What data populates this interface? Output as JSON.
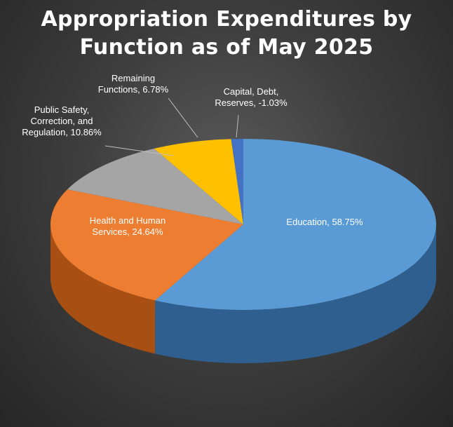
{
  "chart_data": {
    "type": "pie",
    "style": "3d",
    "title_lines": [
      "Appropriation Expenditures by",
      "Function as of May 2025"
    ],
    "slices": [
      {
        "label": "Education",
        "value": 58.75,
        "label_text": [
          "Education, 58.75%"
        ],
        "color": "#5b9bd5",
        "side_color": "#2e5f8f",
        "label_color": "#ffffff"
      },
      {
        "label": "Health and Human Services",
        "value": 24.64,
        "label_text": [
          "Health and Human",
          "Services, 24.64%"
        ],
        "color": "#ed7d31",
        "side_color": "#a84f14",
        "label_color": "#ffffff"
      },
      {
        "label": "Public Safety, Correction, and Regulation",
        "value": 10.86,
        "label_text": [
          "Public Safety,",
          "Correction, and",
          "Regulation, 10.86%"
        ],
        "color": "#a5a5a5",
        "side_color": "#6b6b6b",
        "label_color": "#ffffff"
      },
      {
        "label": "Remaining Functions",
        "value": 6.78,
        "label_text": [
          "Remaining",
          "Functions, 6.78%"
        ],
        "color": "#ffc000",
        "side_color": "#b38600",
        "label_color": "#ffffff"
      },
      {
        "label": "Capital, Debt, Reserves",
        "value": -1.03,
        "label_text": [
          "Capital, Debt,",
          "Reserves, -1.03%"
        ],
        "color": "#4472c4",
        "side_color": "#2a4a86",
        "label_color": "#ffffff"
      }
    ],
    "legend": "none"
  }
}
